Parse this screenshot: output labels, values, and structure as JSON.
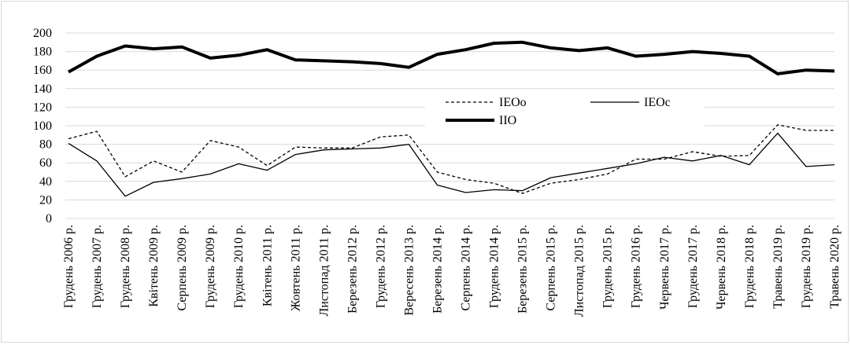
{
  "chart_data": {
    "type": "line",
    "title": "",
    "xlabel": "",
    "ylabel": "",
    "ylim": [
      0,
      200
    ],
    "yticks": [
      0,
      20,
      40,
      60,
      80,
      100,
      120,
      140,
      160,
      180,
      200
    ],
    "grid": "horizontal",
    "legend_placement": "center",
    "categories": [
      "Грудень 2006 р.",
      "Грудень 2007 р.",
      "Грудень 2008 р.",
      "Квітень 2009 р.",
      "Серпень 2009 р.",
      "Грудень 2009 р.",
      "Грудень 2010 р.",
      "Квітень 2011 р.",
      "Жовтень 2011 р.",
      "Листопад 2011 р.",
      "Березень 2012 р.",
      "Грудень 2012 р.",
      "Вересень 2013 р.",
      "Березень 2014 р.",
      "Серпень 2014 р.",
      "Грудень 2014 р.",
      "Березень 2015 р.",
      "Серпень 2015 р.",
      "Листопад 2015 р.",
      "Грудень 2015 р.",
      "Грудень 2016 р.",
      "Червень 2017 р.",
      "Грудень 2017 р.",
      "Червень 2018 р.",
      "Грудень 2018 р.",
      "Травень 2019 р.",
      "Грудень 2019 р.",
      "Травень 2020 р."
    ],
    "series": [
      {
        "name": "IEOo",
        "style": "dashed",
        "color": "#000000",
        "values": [
          86,
          94,
          45,
          62,
          50,
          84,
          77,
          57,
          77,
          76,
          76,
          88,
          90,
          50,
          42,
          38,
          27,
          38,
          42,
          48,
          64,
          64,
          72,
          67,
          68,
          101,
          95,
          95
        ]
      },
      {
        "name": "IEOc",
        "style": "solid",
        "color": "#000000",
        "values": [
          81,
          62,
          24,
          39,
          43,
          48,
          59,
          52,
          69,
          74,
          75,
          76,
          80,
          36,
          28,
          31,
          30,
          44,
          49,
          54,
          59,
          66,
          62,
          68,
          58,
          92,
          56,
          58
        ]
      },
      {
        "name": "IIO",
        "style": "bold",
        "color": "#000000",
        "values": [
          158,
          175,
          186,
          183,
          185,
          173,
          176,
          182,
          171,
          170,
          169,
          167,
          163,
          177,
          182,
          189,
          190,
          184,
          181,
          184,
          175,
          177,
          180,
          178,
          175,
          156,
          160,
          159
        ]
      }
    ]
  }
}
